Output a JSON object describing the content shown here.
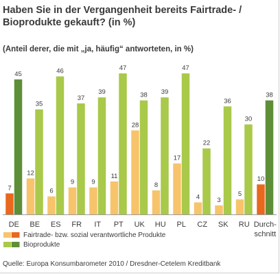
{
  "chart_data": {
    "type": "bar",
    "title": "Haben Sie in der Vergangenheit bereits Fairtrade- / Bioprodukte gekauft? (in %)",
    "title_lines": [
      "Haben Sie in der Vergangenheit bereits Fairtrade- /",
      "Bioprodukte gekauft? (in %)"
    ],
    "subtitle": "(Anteil derer, die mit „ja, häufig“ antworteten, in %)",
    "categories": [
      "DE",
      "BE",
      "ES",
      "FR",
      "IT",
      "PT",
      "UK",
      "HU",
      "PL",
      "CZ",
      "SK",
      "RU",
      "Durchschnitt"
    ],
    "category_lines": [
      [
        "DE"
      ],
      [
        "BE"
      ],
      [
        "ES"
      ],
      [
        "FR"
      ],
      [
        "IT"
      ],
      [
        "PT"
      ],
      [
        "UK"
      ],
      [
        "HU"
      ],
      [
        "PL"
      ],
      [
        "CZ"
      ],
      [
        "SK"
      ],
      [
        "RU"
      ],
      [
        "Durch-",
        "schnitt"
      ]
    ],
    "series": [
      {
        "name": "Fairtrade- bzw. sozial verantwortliche Produkte",
        "values": [
          7,
          12,
          6,
          9,
          9,
          11,
          28,
          8,
          17,
          4,
          3,
          5,
          10
        ],
        "color": "#f7c46c",
        "highlight_color": "#e8681e"
      },
      {
        "name": "Bioprodukte",
        "values": [
          45,
          35,
          46,
          37,
          39,
          47,
          38,
          39,
          47,
          22,
          36,
          30,
          38
        ],
        "color": "#a9c94a",
        "highlight_color": "#5e8f38"
      }
    ],
    "highlight_categories": [
      "DE",
      "Durchschnitt"
    ],
    "ylim": [
      0,
      50
    ],
    "grid": false,
    "legend_position": "bottom-left",
    "source": "Quelle: Europa Konsumbarometer 2010 / Dresdner-Cetelem Kreditbank"
  }
}
